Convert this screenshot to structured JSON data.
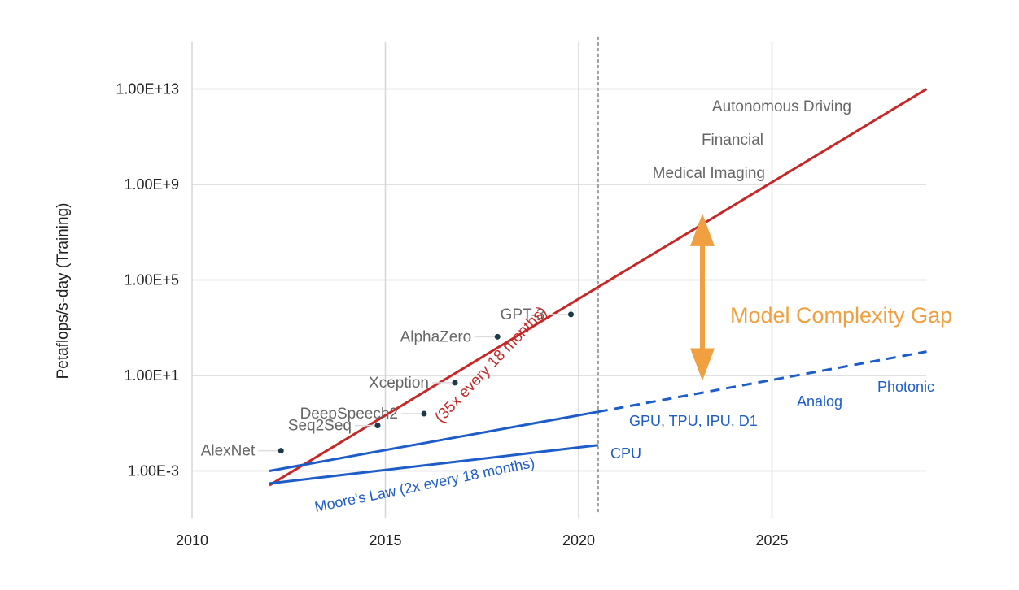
{
  "chart_data": {
    "type": "line",
    "title": "",
    "xlabel": "",
    "ylabel": "Petaflops/s-day (Training)",
    "y_scale": "log",
    "xlim": [
      2010,
      2029
    ],
    "x_ticks": [
      2010,
      2015,
      2020,
      2025
    ],
    "x_tick_labels": [
      "2010",
      "2015",
      "2020",
      "2025"
    ],
    "y_ticks": [
      0.001,
      10,
      100000,
      1000000000,
      10000000000000
    ],
    "y_tick_labels": [
      "1.00E-3",
      "1.00E+1",
      "1.00E+5",
      "1.00E+9",
      "1.00E+13"
    ],
    "grid": true,
    "series": [
      {
        "key": "trend",
        "name": "(35x every 18 months)",
        "color": "#c62828",
        "dashed": false,
        "x": [
          2012.0,
          2029.0
        ],
        "y": [
          0.00025,
          10000000000000
        ]
      },
      {
        "key": "gpu",
        "name": "GPU, TPU, IPU, D1",
        "color": "#1e5cc8",
        "dashed": false,
        "x": [
          2012.0,
          2020.5
        ],
        "y": [
          0.001,
          0.3
        ]
      },
      {
        "key": "future",
        "name": "",
        "color": "#1e5cc8",
        "dashed": true,
        "x": [
          2020.5,
          2029.0
        ],
        "y": [
          0.3,
          100
        ]
      },
      {
        "key": "moore",
        "name": "Moore's Law (2x every 18 months)",
        "color": "#1e5cc8",
        "dashed": false,
        "x": [
          2012.0,
          2020.5
        ],
        "y": [
          0.0003,
          0.012
        ]
      }
    ],
    "points": [
      {
        "name": "AlexNet",
        "x": 2012.3,
        "y": 0.007
      },
      {
        "name": "Seq2Seq",
        "x": 2014.8,
        "y": 0.08
      },
      {
        "name": "DeepSpeech2",
        "x": 2016.0,
        "y": 0.25
      },
      {
        "name": "Xception",
        "x": 2016.8,
        "y": 5
      },
      {
        "name": "AlphaZero",
        "x": 2017.9,
        "y": 420
      },
      {
        "name": "GPT-3",
        "x": 2019.8,
        "y": 3600
      }
    ],
    "vline": {
      "x": 2020.5,
      "style": "dotted",
      "color": "#a0a0a0"
    },
    "annotations": {
      "autonomous": "Autonomous Driving",
      "financial": "Financial",
      "medical": "Medical Imaging",
      "gap": "Model Complexity Gap",
      "cpu": "CPU",
      "analog": "Analog",
      "photonic": "Photonic",
      "gpu": "GPU, TPU, IPU, D1",
      "trend": "(35x every 18 months)",
      "moore": "Moore's Law (2x every 18 months)"
    },
    "gap_arrow": {
      "x": 2023.2,
      "y_top": 60000000,
      "y_bottom": 6
    },
    "gap_color": "#f0a040"
  }
}
